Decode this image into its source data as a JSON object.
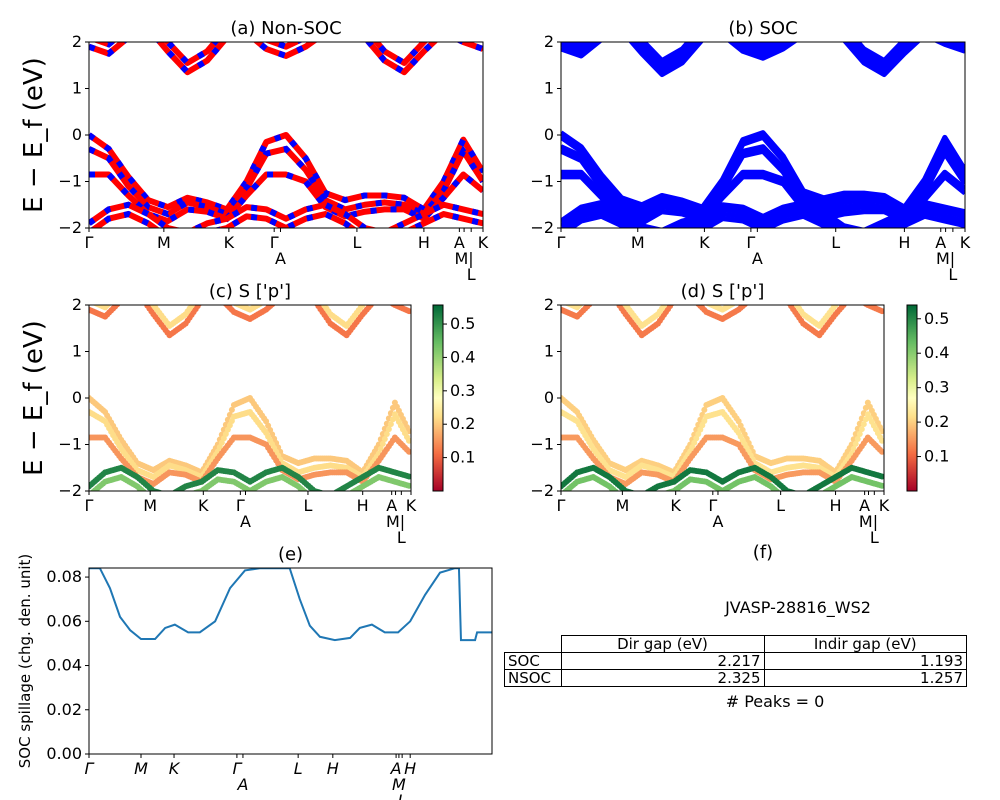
{
  "chart_data": [
    {
      "type": "line",
      "panel": "a",
      "title": "(a) Non-SOC",
      "ylabel": "E − E_f (eV)",
      "ylim": [
        -2,
        2
      ],
      "yticks": [
        "2",
        "1",
        "0",
        "−1",
        "−2"
      ],
      "series_colors": [
        "#ff0000",
        "#0000ff"
      ],
      "xticks": [
        {
          "label": "Γ",
          "k": 0
        },
        {
          "label": "M",
          "k": 0.19
        },
        {
          "label": "K",
          "k": 0.355
        },
        {
          "label": "Γ",
          "k": 0.47
        },
        {
          "label": "A",
          "k": 0.486
        },
        {
          "label": "L",
          "k": 0.68
        },
        {
          "label": "H",
          "k": 0.85
        },
        {
          "label": "A",
          "k": 0.94
        },
        {
          "label": "M|",
          "k": 0.952
        },
        {
          "label": "L",
          "k": 0.97
        },
        {
          "label": "K",
          "k": 1
        }
      ]
    },
    {
      "type": "line",
      "panel": "b",
      "title": "(b) SOC",
      "ylim": [
        -2,
        2
      ],
      "yticks": [
        "2",
        "1",
        "0",
        "−1",
        "−2"
      ],
      "series_colors": [
        "#0000ff"
      ]
    },
    {
      "type": "scatter",
      "panel": "c",
      "title": "(c)  S ['p']",
      "ylabel": "E − E_f (eV)",
      "ylim": [
        -2,
        2
      ],
      "colormap": "RdYlGn",
      "colorbar_ticks": [
        "0.1",
        "0.2",
        "0.3",
        "0.4",
        "0.5"
      ],
      "colorbar_range": [
        0,
        0.557
      ]
    },
    {
      "type": "scatter",
      "panel": "d",
      "title": "(d) S ['p']",
      "ylim": [
        -2,
        2
      ],
      "colormap": "RdYlGn",
      "colorbar_ticks": [
        "0.1",
        "0.2",
        "0.3",
        "0.4",
        "0.5"
      ],
      "colorbar_range": [
        0,
        0.54
      ]
    },
    {
      "type": "line",
      "panel": "e",
      "title": "(e)",
      "ylabel": "SOC spillage (chg. den. unit)",
      "ylim": [
        0,
        0.0841
      ],
      "yticks": [
        "0.08",
        "0.06",
        "0.04",
        "0.02",
        "0.00"
      ],
      "color": "#1f77b4",
      "xticks": [
        {
          "label": "Γ",
          "k": 0
        },
        {
          "label": "M",
          "k": 0.129
        },
        {
          "label": "K",
          "k": 0.211
        },
        {
          "label": "Γ",
          "k": 0.367
        },
        {
          "label": "A",
          "k": 0.382
        },
        {
          "label": "L",
          "k": 0.519
        },
        {
          "label": "H",
          "k": 0.605
        },
        {
          "label": "A",
          "k": 0.762
        },
        {
          "label": "M",
          "k": 0.769
        },
        {
          "label": "L",
          "k": 0.777
        },
        {
          "label": "H",
          "k": 0.797
        }
      ],
      "x": [
        0,
        0.027,
        0.052,
        0.077,
        0.102,
        0.129,
        0.164,
        0.189,
        0.213,
        0.246,
        0.275,
        0.313,
        0.35,
        0.387,
        0.424,
        0.498,
        0.523,
        0.548,
        0.573,
        0.61,
        0.648,
        0.672,
        0.702,
        0.734,
        0.767,
        0.797,
        0.834,
        0.871,
        0.908,
        0.918,
        0.923,
        0.958,
        0.963,
        1
      ],
      "values": [
        0.084,
        0.084,
        0.075,
        0.062,
        0.056,
        0.052,
        0.052,
        0.057,
        0.0585,
        0.055,
        0.055,
        0.06,
        0.075,
        0.083,
        0.084,
        0.084,
        0.07,
        0.058,
        0.053,
        0.0515,
        0.0525,
        0.057,
        0.0585,
        0.055,
        0.055,
        0.06,
        0.072,
        0.082,
        0.084,
        0.084,
        0.0515,
        0.0515,
        0.055,
        0.055
      ]
    }
  ],
  "bands": {
    "k": [
      0,
      0.05,
      0.1,
      0.15,
      0.2,
      0.25,
      0.3,
      0.35,
      0.4,
      0.45,
      0.5,
      0.55,
      0.6,
      0.65,
      0.7,
      0.75,
      0.8,
      0.85,
      0.9,
      0.95,
      1
    ],
    "list": [
      {
        "w": 0.2,
        "E": [
          0,
          -0.3,
          -0.9,
          -1.4,
          -1.55,
          -1.35,
          -1.45,
          -1.6,
          -1.0,
          -0.15,
          0,
          -0.5,
          -1.25,
          -1.4,
          -1.3,
          -1.3,
          -1.35,
          -1.6,
          -1.0,
          -0.1,
          -0.8
        ]
      },
      {
        "w": 0.22,
        "E": [
          -0.3,
          -0.5,
          -1.1,
          -1.55,
          -1.7,
          -1.45,
          -1.55,
          -1.7,
          -1.15,
          -0.4,
          -0.3,
          -0.75,
          -1.4,
          -1.6,
          -1.5,
          -1.45,
          -1.5,
          -1.7,
          -1.2,
          -0.35,
          -1.0
        ]
      },
      {
        "w": 0.15,
        "E": [
          -0.85,
          -0.85,
          -1.3,
          -1.7,
          -1.85,
          -1.6,
          -1.65,
          -1.8,
          -1.3,
          -0.85,
          -0.85,
          -1.0,
          -1.55,
          -1.75,
          -1.65,
          -1.6,
          -1.6,
          -1.8,
          -1.35,
          -0.85,
          -1.2
        ]
      },
      {
        "w": 0.52,
        "E": [
          -1.9,
          -1.6,
          -1.5,
          -1.7,
          -2.0,
          -2.1,
          -1.9,
          -1.8,
          -1.55,
          -1.6,
          -1.8,
          -1.6,
          -1.5,
          -1.7,
          -2.0,
          -2.1,
          -1.9,
          -1.7,
          -1.5,
          -1.6,
          -1.7
        ]
      },
      {
        "w": 0.42,
        "E": [
          -2.1,
          -1.8,
          -1.7,
          -1.9,
          -2.2,
          -2.3,
          -2.1,
          -2.0,
          -1.75,
          -1.8,
          -2.0,
          -1.8,
          -1.7,
          -1.9,
          -2.2,
          -2.3,
          -2.1,
          -1.9,
          -1.7,
          -1.8,
          -1.9
        ]
      },
      {
        "w": 0.12,
        "E": [
          1.9,
          1.75,
          2.1,
          2.3,
          1.8,
          1.35,
          1.6,
          2.1,
          2.2,
          1.85,
          1.7,
          1.9,
          2.2,
          2.3,
          2.1,
          1.6,
          1.35,
          1.8,
          2.2,
          2.0,
          1.85
        ]
      },
      {
        "w": 0.22,
        "E": [
          2.1,
          1.95,
          2.3,
          2.5,
          2.0,
          1.55,
          1.8,
          2.3,
          2.4,
          2.05,
          1.9,
          2.1,
          2.4,
          2.5,
          2.3,
          1.8,
          1.55,
          2.0,
          2.4,
          2.2,
          2.05
        ]
      }
    ]
  },
  "table": {
    "title": "(f)",
    "subtitle": "JVASP-28816_WS2",
    "headers": [
      "",
      "Dir gap (eV)",
      "Indir gap (eV)"
    ],
    "rows": [
      [
        "SOC",
        "2.217",
        "1.193"
      ],
      [
        "NSOC",
        "2.325",
        "1.257"
      ]
    ],
    "footer": "# Peaks = 0"
  }
}
